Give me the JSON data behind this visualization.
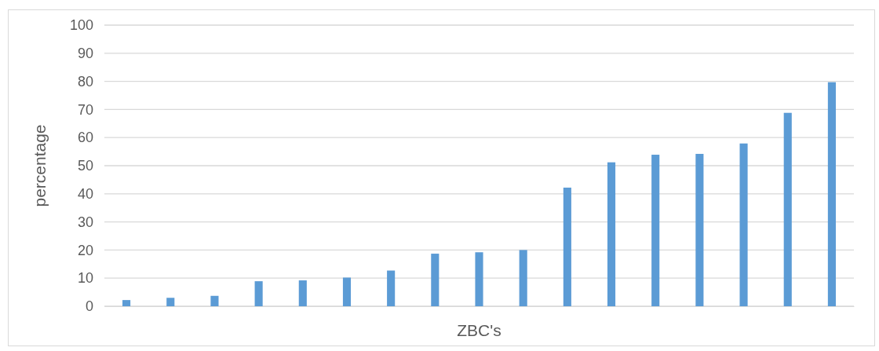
{
  "chart_data": {
    "type": "bar",
    "xlabel": "ZBC's",
    "ylabel": "percentage",
    "categories": [
      null,
      null,
      null,
      null,
      null,
      null,
      null,
      null,
      null,
      null,
      null,
      null,
      null,
      null,
      null,
      null,
      null
    ],
    "values": [
      2.2,
      3,
      3.7,
      8.9,
      9.2,
      10.2,
      12.7,
      18.7,
      19.2,
      20,
      42.2,
      51.2,
      53.9,
      54.2,
      57.9,
      68.8,
      79.7
    ],
    "color": "#5b9bd5",
    "ylim": [
      0,
      100
    ],
    "yticks": [
      0,
      10,
      20,
      30,
      40,
      50,
      60,
      70,
      80,
      90,
      100
    ],
    "grid": "y"
  }
}
